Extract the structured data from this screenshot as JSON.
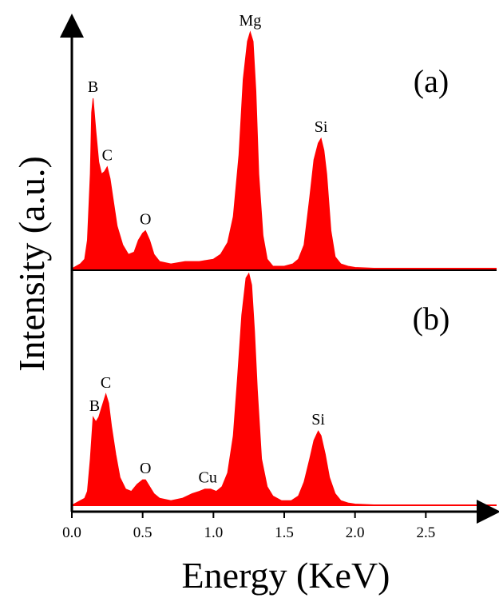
{
  "chart_data": {
    "type": "area",
    "xlabel": "Energy (KeV)",
    "ylabel": "Intensity (a.u.)",
    "xlim": [
      0,
      3.0
    ],
    "xticks": [
      {
        "value": 0.0,
        "label": "0.0"
      },
      {
        "value": 0.5,
        "label": "0.5"
      },
      {
        "value": 1.0,
        "label": "1.0"
      },
      {
        "value": 1.5,
        "label": "1.5"
      },
      {
        "value": 2.0,
        "label": "2.0"
      },
      {
        "value": 2.5,
        "label": "2.5"
      }
    ],
    "fill_color": "#ff0000",
    "panels": [
      {
        "label": "(a)",
        "max_intensity": 100,
        "peaks": [
          {
            "element": "B",
            "energy": 0.15,
            "intensity": 72
          },
          {
            "element": "C",
            "energy": 0.25,
            "intensity": 43
          },
          {
            "element": "O",
            "energy": 0.52,
            "intensity": 16
          },
          {
            "element": "Mg",
            "energy": 1.26,
            "intensity": 100
          },
          {
            "element": "Si",
            "energy": 1.76,
            "intensity": 55
          }
        ],
        "series": [
          {
            "x": [
              0.0,
              0.03,
              0.06,
              0.09,
              0.11,
              0.13,
              0.14,
              0.15,
              0.17,
              0.19,
              0.21,
              0.23,
              0.25,
              0.27,
              0.29,
              0.32,
              0.36,
              0.4,
              0.44,
              0.47,
              0.5,
              0.52,
              0.55,
              0.58,
              0.62,
              0.7,
              0.8,
              0.9,
              1.0,
              1.05,
              1.1,
              1.14,
              1.18,
              1.21,
              1.24,
              1.26,
              1.28,
              1.3,
              1.32,
              1.35,
              1.38,
              1.42,
              1.5,
              1.56,
              1.6,
              1.64,
              1.68,
              1.71,
              1.74,
              1.76,
              1.78,
              1.8,
              1.83,
              1.86,
              1.9,
              1.95,
              2.0,
              2.2,
              2.5,
              3.0
            ],
            "y": [
              0,
              1,
              2,
              4,
              12,
              40,
              66,
              72,
              58,
              45,
              40,
              41,
              43,
              38,
              30,
              18,
              10,
              6,
              7,
              12,
              15,
              16,
              12,
              6,
              3,
              2,
              3,
              3,
              4,
              6,
              11,
              22,
              48,
              80,
              96,
              100,
              96,
              75,
              40,
              14,
              4,
              1,
              1,
              2,
              4,
              10,
              30,
              46,
              53,
              55,
              50,
              40,
              16,
              5,
              2,
              1,
              0.5,
              0,
              0,
              0
            ]
          }
        ]
      },
      {
        "label": "(b)",
        "max_intensity": 100,
        "peaks": [
          {
            "element": "B",
            "energy": 0.16,
            "intensity": 38
          },
          {
            "element": "C",
            "energy": 0.24,
            "intensity": 48
          },
          {
            "element": "O",
            "energy": 0.52,
            "intensity": 11
          },
          {
            "element": "Cu",
            "energy": 0.96,
            "intensity": 7
          },
          {
            "element": "Si",
            "energy": 1.74,
            "intensity": 32
          }
        ],
        "series": [
          {
            "x": [
              0.0,
              0.03,
              0.06,
              0.09,
              0.11,
              0.13,
              0.15,
              0.17,
              0.19,
              0.21,
              0.23,
              0.24,
              0.26,
              0.28,
              0.31,
              0.34,
              0.38,
              0.42,
              0.46,
              0.5,
              0.52,
              0.55,
              0.58,
              0.62,
              0.7,
              0.78,
              0.85,
              0.9,
              0.94,
              0.98,
              1.02,
              1.06,
              1.1,
              1.14,
              1.17,
              1.2,
              1.23,
              1.25,
              1.27,
              1.29,
              1.31,
              1.34,
              1.38,
              1.42,
              1.48,
              1.55,
              1.6,
              1.64,
              1.68,
              1.71,
              1.74,
              1.76,
              1.79,
              1.82,
              1.86,
              1.9,
              1.95,
              2.0,
              2.2,
              2.5,
              3.0
            ],
            "y": [
              0,
              1,
              2,
              3,
              6,
              20,
              38,
              36,
              38,
              42,
              46,
              48,
              44,
              34,
              22,
              12,
              7,
              6,
              9,
              11,
              11,
              8,
              5,
              3,
              2,
              3,
              5,
              6,
              7,
              7,
              6,
              8,
              14,
              30,
              55,
              82,
              98,
              100,
              95,
              75,
              50,
              20,
              8,
              4,
              2,
              2,
              4,
              10,
              20,
              28,
              32,
              30,
              22,
              12,
              5,
              2,
              1,
              0.5,
              0,
              0,
              0
            ]
          }
        ]
      }
    ]
  }
}
